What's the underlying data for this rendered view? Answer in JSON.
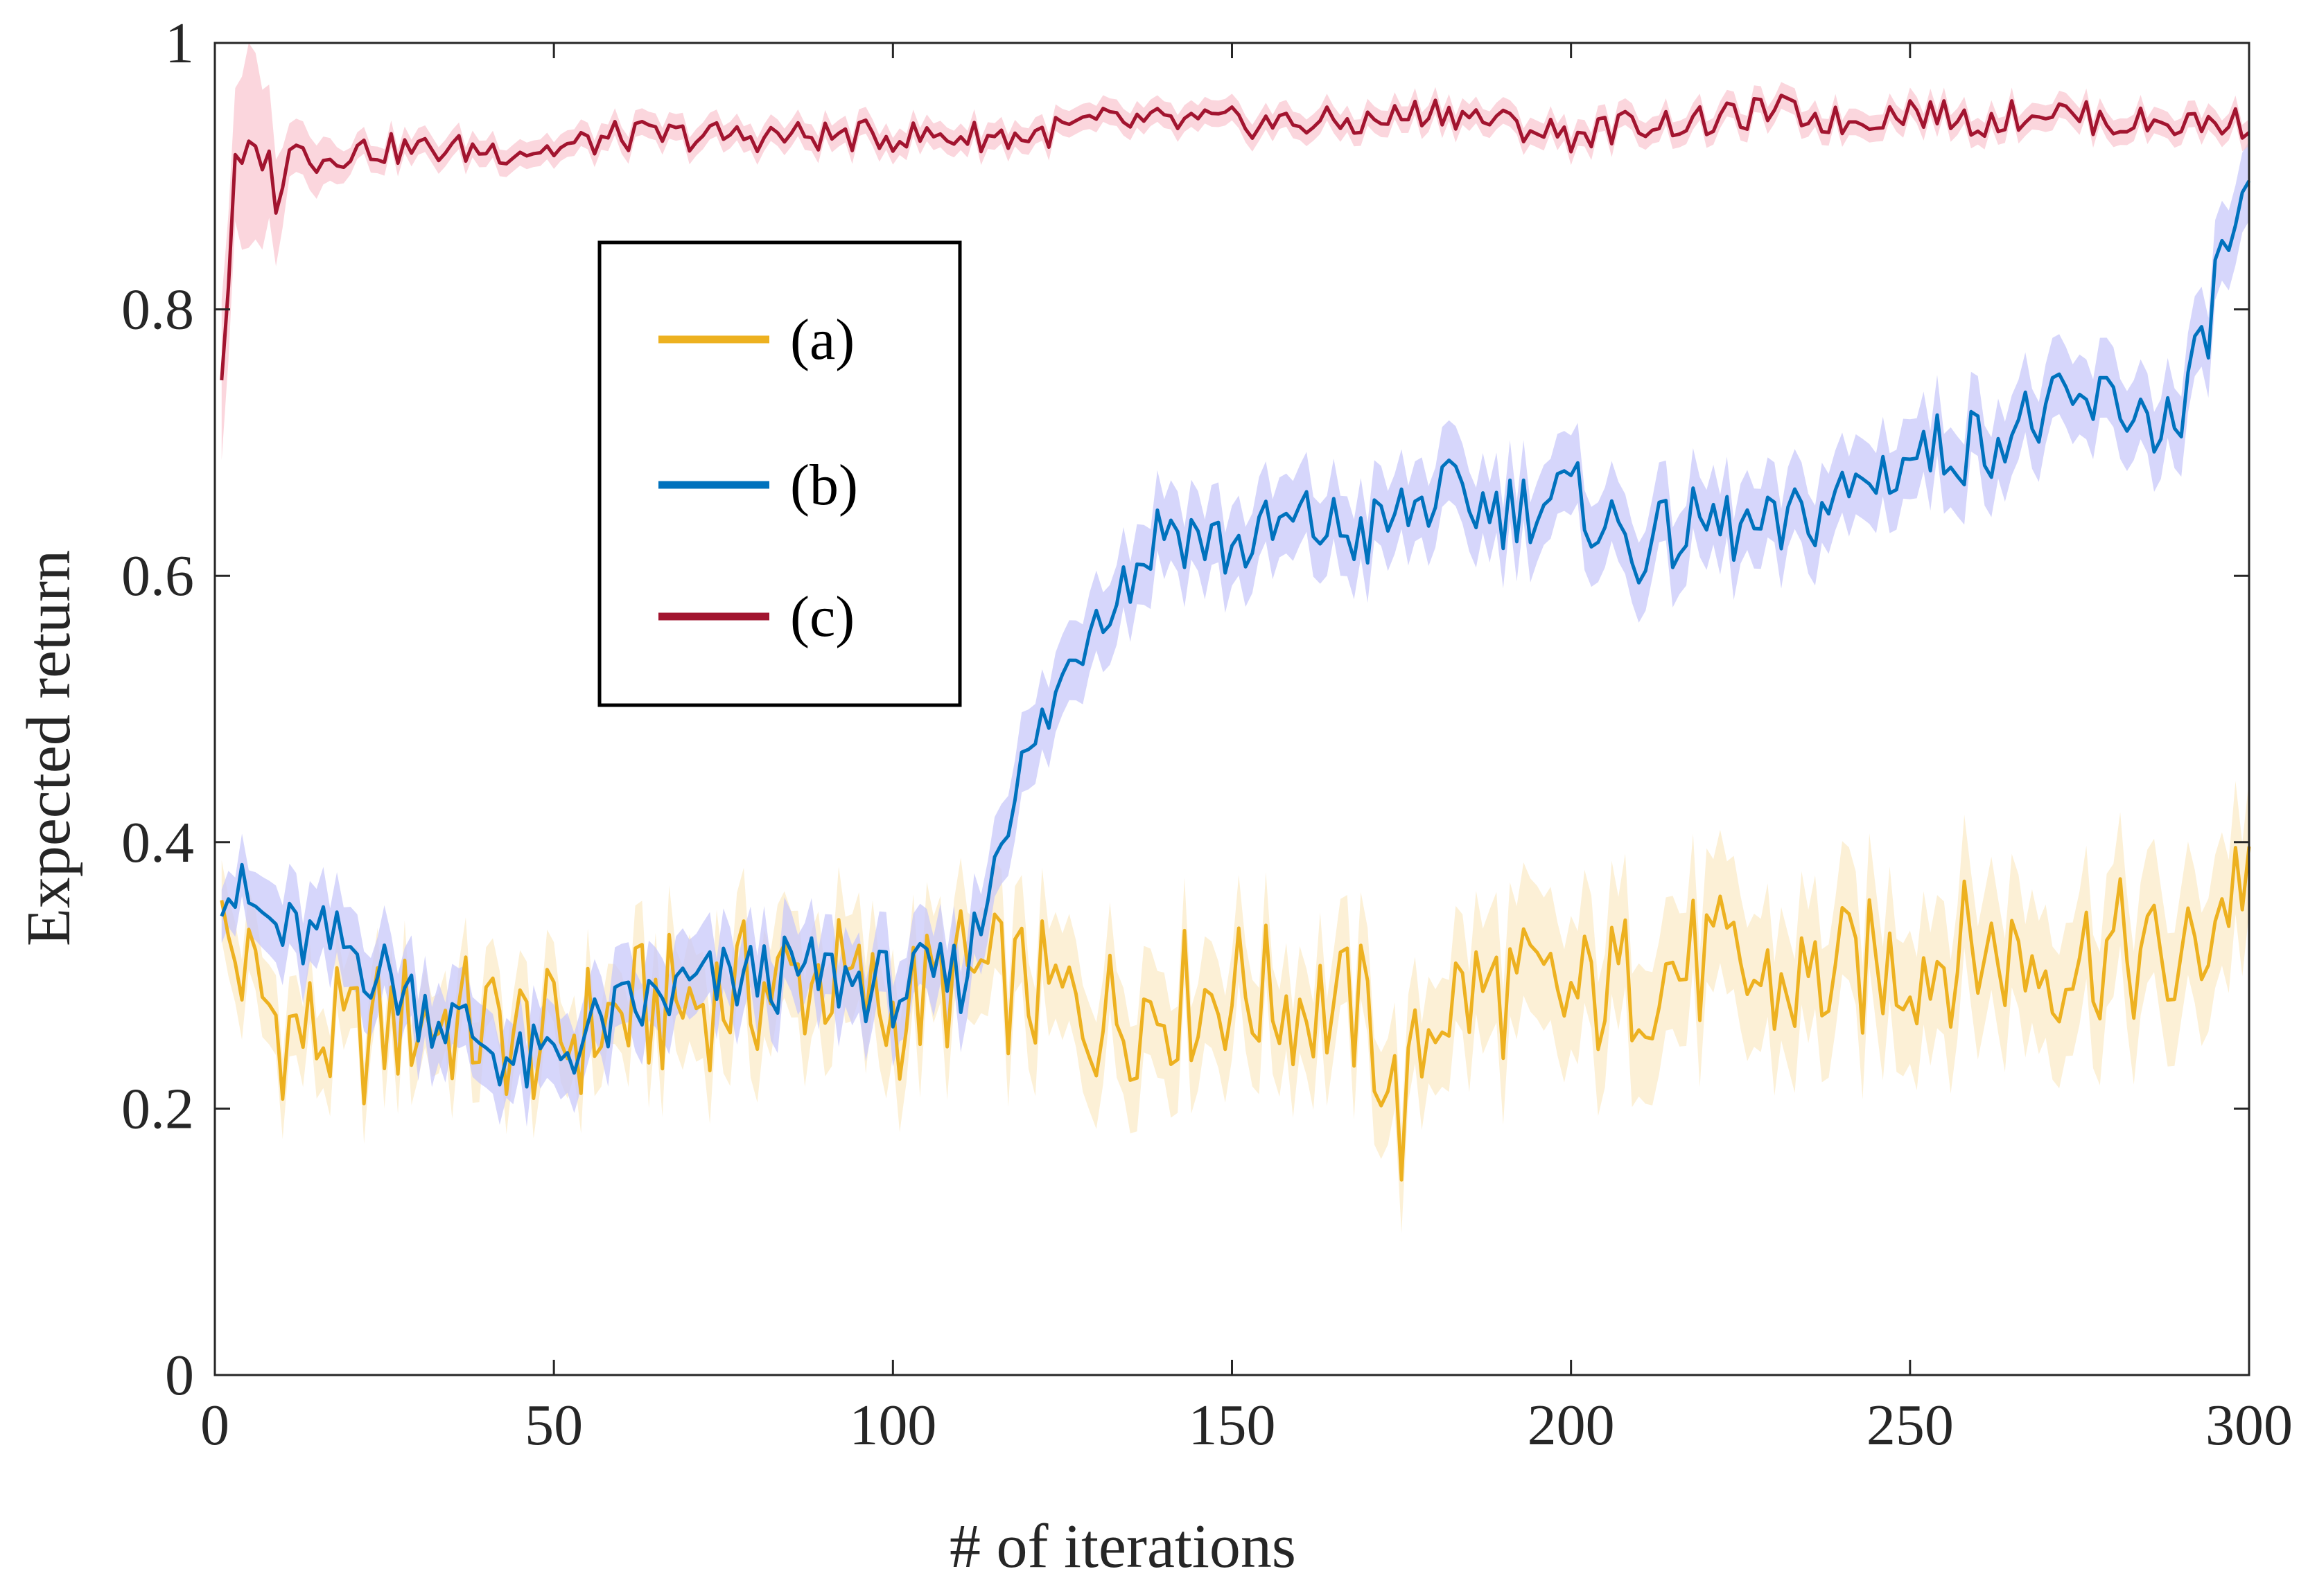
{
  "chart_data": {
    "type": "line",
    "title": "",
    "xlabel": "# of iterations",
    "ylabel": "Expected return",
    "xlim": [
      0,
      300
    ],
    "ylim": [
      0,
      1
    ],
    "xticks": [
      0,
      50,
      100,
      150,
      200,
      250,
      300
    ],
    "yticks": [
      0,
      0.2,
      0.4,
      0.6,
      0.8,
      1
    ],
    "ytick_labels": [
      "0",
      "0.2",
      "0.4",
      "0.6",
      "0.8",
      "1"
    ],
    "grid": false,
    "legend_position": "upper-left-center",
    "series": [
      {
        "name": "(a)",
        "color": "#EDB120",
        "band_color": "#FBEBC8",
        "x": [
          1,
          10,
          20,
          30,
          40,
          50,
          60,
          70,
          80,
          90,
          100,
          110,
          120,
          130,
          140,
          150,
          160,
          170,
          175,
          180,
          190,
          200,
          210,
          220,
          230,
          240,
          250,
          260,
          270,
          280,
          290,
          300
        ],
        "values": [
          0.33,
          0.26,
          0.25,
          0.27,
          0.26,
          0.25,
          0.27,
          0.28,
          0.29,
          0.3,
          0.27,
          0.3,
          0.29,
          0.27,
          0.28,
          0.29,
          0.28,
          0.27,
          0.19,
          0.28,
          0.29,
          0.28,
          0.3,
          0.31,
          0.29,
          0.3,
          0.31,
          0.32,
          0.31,
          0.32,
          0.3,
          0.39
        ],
        "band": [
          0.03,
          0.03,
          0.03,
          0.03,
          0.03,
          0.03,
          0.03,
          0.04,
          0.04,
          0.04,
          0.04,
          0.04,
          0.04,
          0.04,
          0.04,
          0.04,
          0.04,
          0.04,
          0.04,
          0.04,
          0.05,
          0.05,
          0.05,
          0.05,
          0.05,
          0.05,
          0.05,
          0.05,
          0.05,
          0.05,
          0.05,
          0.05
        ]
      },
      {
        "name": "(b)",
        "color": "#0072BD",
        "band_color": "#C8C8FA",
        "x": [
          1,
          10,
          20,
          30,
          40,
          45,
          50,
          60,
          70,
          80,
          90,
          100,
          110,
          113,
          116,
          120,
          125,
          130,
          135,
          140,
          150,
          160,
          170,
          180,
          190,
          200,
          210,
          220,
          230,
          240,
          250,
          260,
          270,
          280,
          290,
          293,
          296,
          300
        ],
        "values": [
          0.37,
          0.33,
          0.32,
          0.28,
          0.25,
          0.23,
          0.24,
          0.27,
          0.29,
          0.3,
          0.3,
          0.29,
          0.3,
          0.34,
          0.42,
          0.46,
          0.52,
          0.58,
          0.6,
          0.64,
          0.62,
          0.64,
          0.63,
          0.66,
          0.65,
          0.66,
          0.62,
          0.64,
          0.63,
          0.66,
          0.69,
          0.7,
          0.72,
          0.73,
          0.71,
          0.77,
          0.84,
          0.88
        ],
        "band": [
          0.02,
          0.03,
          0.03,
          0.03,
          0.03,
          0.03,
          0.03,
          0.03,
          0.03,
          0.03,
          0.03,
          0.03,
          0.03,
          0.03,
          0.03,
          0.03,
          0.03,
          0.03,
          0.03,
          0.03,
          0.03,
          0.03,
          0.03,
          0.03,
          0.03,
          0.03,
          0.03,
          0.03,
          0.03,
          0.03,
          0.03,
          0.03,
          0.03,
          0.03,
          0.03,
          0.03,
          0.03,
          0.03
        ]
      },
      {
        "name": "(c)",
        "color": "#A2142F",
        "band_color": "#F9C8D2",
        "x": [
          1,
          3,
          5,
          7,
          9,
          11,
          13,
          15,
          20,
          30,
          40,
          50,
          60,
          70,
          80,
          90,
          100,
          110,
          120,
          130,
          140,
          150,
          160,
          170,
          180,
          190,
          200,
          210,
          220,
          230,
          240,
          250,
          260,
          270,
          280,
          290,
          300
        ],
        "values": [
          0.75,
          0.9,
          0.91,
          0.92,
          0.89,
          0.91,
          0.93,
          0.91,
          0.92,
          0.92,
          0.92,
          0.92,
          0.93,
          0.93,
          0.93,
          0.93,
          0.93,
          0.93,
          0.93,
          0.94,
          0.94,
          0.94,
          0.94,
          0.94,
          0.95,
          0.94,
          0.93,
          0.94,
          0.94,
          0.95,
          0.94,
          0.95,
          0.94,
          0.95,
          0.94,
          0.94,
          0.94
        ],
        "band": [
          0.06,
          0.05,
          0.08,
          0.06,
          0.04,
          0.02,
          0.02,
          0.02,
          0.01,
          0.01,
          0.01,
          0.01,
          0.01,
          0.01,
          0.01,
          0.01,
          0.01,
          0.01,
          0.01,
          0.01,
          0.01,
          0.01,
          0.01,
          0.01,
          0.01,
          0.01,
          0.01,
          0.01,
          0.01,
          0.01,
          0.01,
          0.01,
          0.01,
          0.01,
          0.01,
          0.01,
          0.01
        ]
      }
    ]
  }
}
